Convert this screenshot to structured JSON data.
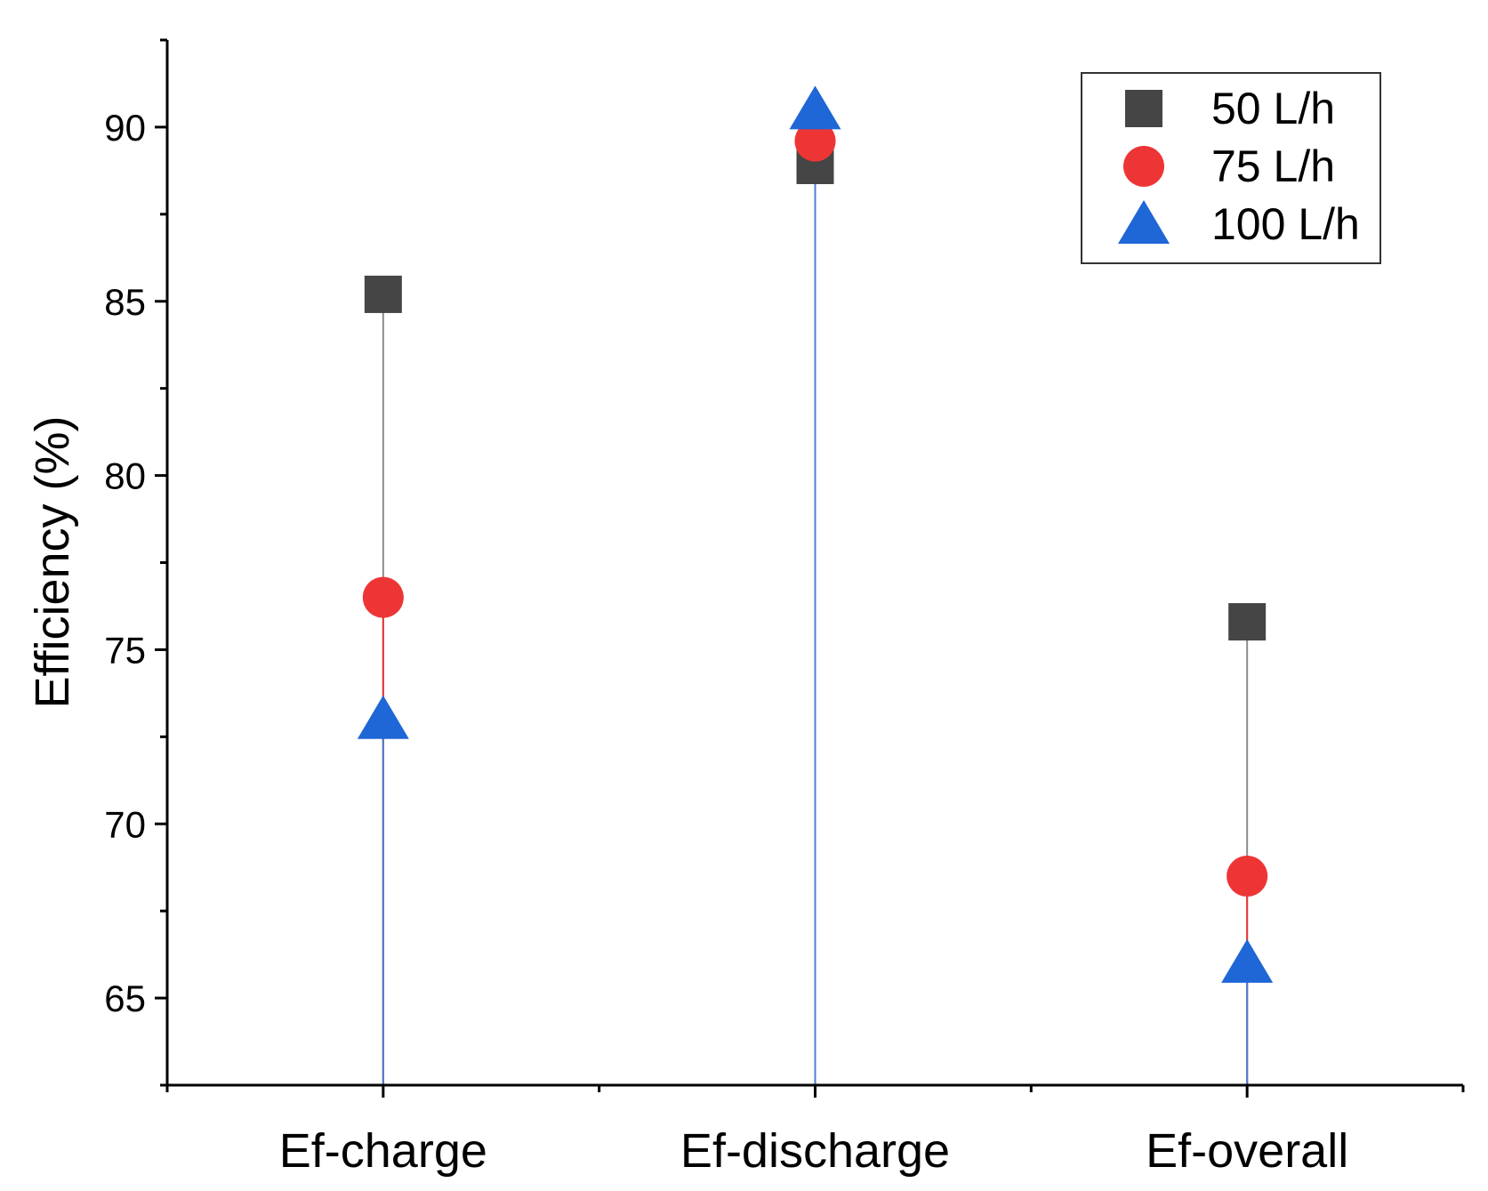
{
  "chart_data": {
    "type": "scatter",
    "subtype": "drop-line",
    "title": "",
    "xlabel": "",
    "ylabel": "Efficiency (%)",
    "categories": [
      "Ef-charge",
      "Ef-discharge",
      "Ef-overall"
    ],
    "ylim": [
      62.5,
      92.5
    ],
    "yticks": [
      65,
      70,
      75,
      80,
      85,
      90
    ],
    "grid": false,
    "legend_position": "top-right",
    "series": [
      {
        "name": "50 L/h",
        "marker": "square",
        "color": "#454545",
        "stem_color": "#8c8c8c",
        "values": [
          85.2,
          88.9,
          75.8
        ]
      },
      {
        "name": "75 L/h",
        "marker": "circle",
        "color": "#ee3535",
        "stem_color": "#ee3535",
        "values": [
          76.5,
          89.6,
          68.5
        ]
      },
      {
        "name": "100 L/h",
        "marker": "triangle",
        "color": "#1f66d6",
        "stem_color": "#4a7fd4",
        "values": [
          73.0,
          90.5,
          66.0
        ]
      }
    ]
  }
}
